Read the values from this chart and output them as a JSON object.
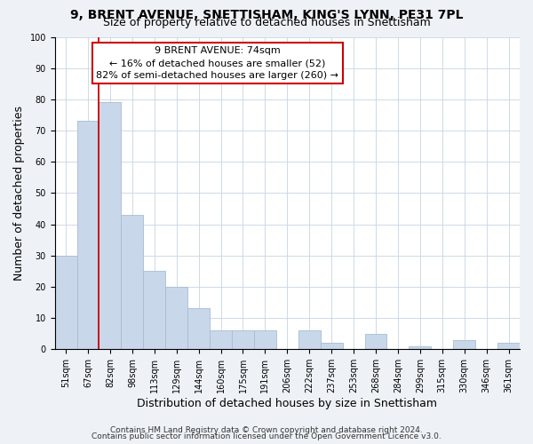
{
  "title_line1": "9, BRENT AVENUE, SNETTISHAM, KING'S LYNN, PE31 7PL",
  "title_line2": "Size of property relative to detached houses in Snettisham",
  "xlabel": "Distribution of detached houses by size in Snettisham",
  "ylabel": "Number of detached properties",
  "bar_labels": [
    "51sqm",
    "67sqm",
    "82sqm",
    "98sqm",
    "113sqm",
    "129sqm",
    "144sqm",
    "160sqm",
    "175sqm",
    "191sqm",
    "206sqm",
    "222sqm",
    "237sqm",
    "253sqm",
    "268sqm",
    "284sqm",
    "299sqm",
    "315sqm",
    "330sqm",
    "346sqm",
    "361sqm"
  ],
  "bar_values": [
    30,
    73,
    79,
    43,
    25,
    20,
    13,
    6,
    6,
    6,
    0,
    6,
    2,
    0,
    5,
    0,
    1,
    0,
    3,
    0,
    2
  ],
  "bar_color": "#c8d8ea",
  "bar_edge_color": "#a8bcd0",
  "highlight_line_color": "#cc0000",
  "ylim": [
    0,
    100
  ],
  "yticks": [
    0,
    10,
    20,
    30,
    40,
    50,
    60,
    70,
    80,
    90,
    100
  ],
  "annotation_title": "9 BRENT AVENUE: 74sqm",
  "annotation_line1": "← 16% of detached houses are smaller (52)",
  "annotation_line2": "82% of semi-detached houses are larger (260) →",
  "annotation_box_facecolor": "#ffffff",
  "annotation_box_edgecolor": "#cc0000",
  "footer_line1": "Contains HM Land Registry data © Crown copyright and database right 2024.",
  "footer_line2": "Contains public sector information licensed under the Open Government Licence v3.0.",
  "background_color": "#eef2f7",
  "plot_background_color": "#ffffff",
  "grid_color": "#c8d4e0",
  "title_fontsize": 10,
  "subtitle_fontsize": 9,
  "axis_label_fontsize": 9,
  "tick_fontsize": 7,
  "annotation_fontsize": 8,
  "footer_fontsize": 6.5
}
